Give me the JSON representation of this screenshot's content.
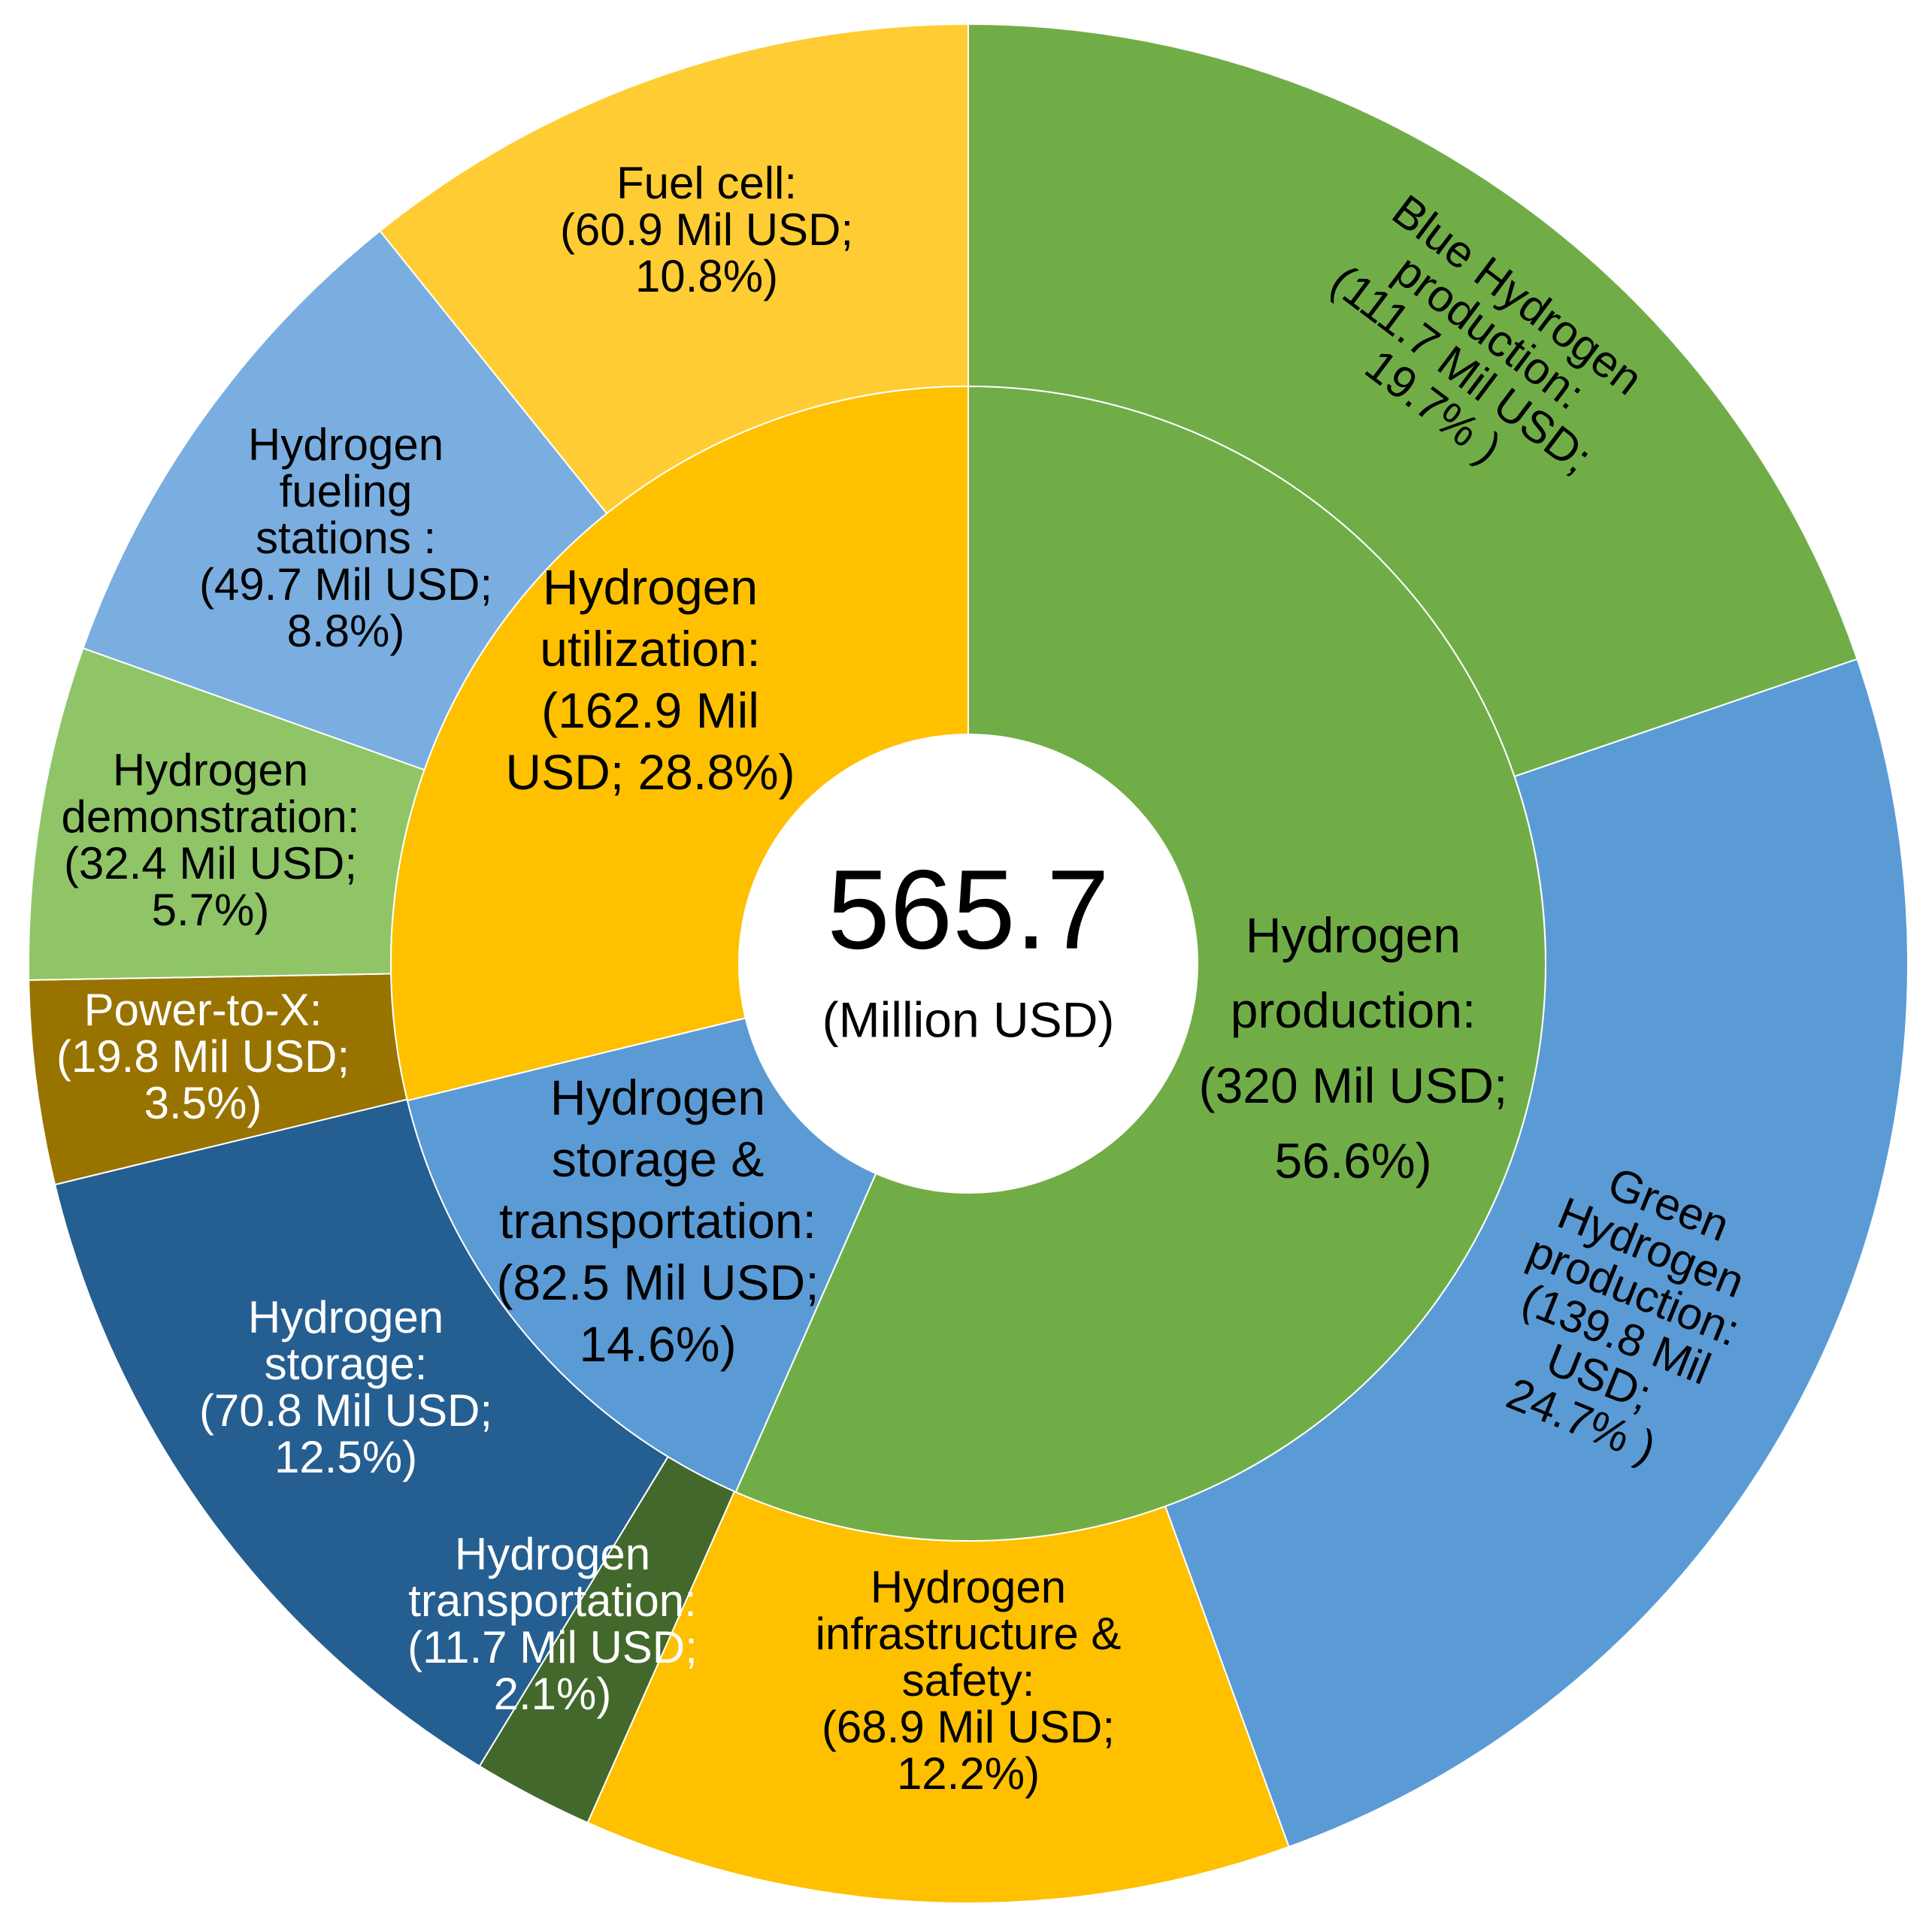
{
  "chart_data": {
    "type": "pie",
    "subtype": "sunburst",
    "center_total": "565.7",
    "center_unit": "(Million USD)",
    "inner_ring": [
      {
        "name": "Hydrogen production",
        "value": 320,
        "percent": 56.6,
        "color": "#70ad47",
        "label": [
          "Hydrogen",
          "production:",
          "(320 Mil USD;",
          "56.6%)"
        ]
      },
      {
        "name": "Hydrogen storage & transportation",
        "value": 82.5,
        "percent": 14.6,
        "color": "#5b9bd5",
        "label": [
          "Hydrogen",
          "storage &",
          "transportation:",
          "(82.5 Mil USD;",
          "14.6%)"
        ]
      },
      {
        "name": "Hydrogen utilization",
        "value": 162.9,
        "percent": 28.8,
        "color": "#ffc000",
        "label": [
          "Hydrogen",
          "utilization:",
          "(162.9 Mil",
          "USD; 28.8%)"
        ]
      }
    ],
    "outer_ring": [
      {
        "name": "Blue Hydrogen production",
        "value": 111.7,
        "percent": 19.7,
        "color": "#70ad47",
        "label": [
          "Blue Hydrogen",
          "production:",
          "(111.7 Mil USD;",
          "19.7% )"
        ]
      },
      {
        "name": "Green Hydrogen production",
        "value": 139.8,
        "percent": 24.7,
        "color": "#5b9bd5",
        "label": [
          "Green",
          "Hydrogen",
          "production:",
          "(139.8 Mil",
          "USD;",
          "24.7% )"
        ]
      },
      {
        "name": "Hydrogen infrastructure & safety",
        "value": 68.9,
        "percent": 12.2,
        "color": "#ffc000",
        "label": [
          "Hydrogen",
          "infrastructure &",
          "safety:",
          "(68.9 Mil USD;",
          "12.2%)"
        ]
      },
      {
        "name": "Hydrogen transportation",
        "value": 11.7,
        "percent": 2.1,
        "color": "#43682b",
        "label": [
          "Hydrogen",
          "transportation:",
          "(11.7 Mil USD;",
          "2.1%)"
        ]
      },
      {
        "name": "Hydrogen storage",
        "value": 70.8,
        "percent": 12.5,
        "color": "#255e91",
        "label": [
          "Hydrogen",
          "storage:",
          "(70.8 Mil USD;",
          "12.5%)"
        ]
      },
      {
        "name": "Power-to-X",
        "value": 19.8,
        "percent": 3.5,
        "color": "#997300",
        "label": [
          "Power-to-X:",
          "(19.8 Mil USD;",
          "3.5%)"
        ]
      },
      {
        "name": "Hydrogen demonstration",
        "value": 32.4,
        "percent": 5.7,
        "color": "#8fc567",
        "label": [
          "Hydrogen",
          "demonstration:",
          "(32.4 Mil USD;",
          "5.7%)"
        ]
      },
      {
        "name": "Hydrogen fueling stations",
        "value": 49.7,
        "percent": 8.8,
        "color": "#7aaee0",
        "label": [
          "Hydrogen",
          "fueling",
          "stations :",
          "(49.7 Mil USD;",
          "8.8%)"
        ]
      },
      {
        "name": "Fuel cell",
        "value": 60.9,
        "percent": 10.8,
        "color": "#ffcd33",
        "label": [
          "Fuel cell:",
          "(60.9 Mil USD;",
          "10.8%)"
        ]
      }
    ]
  }
}
